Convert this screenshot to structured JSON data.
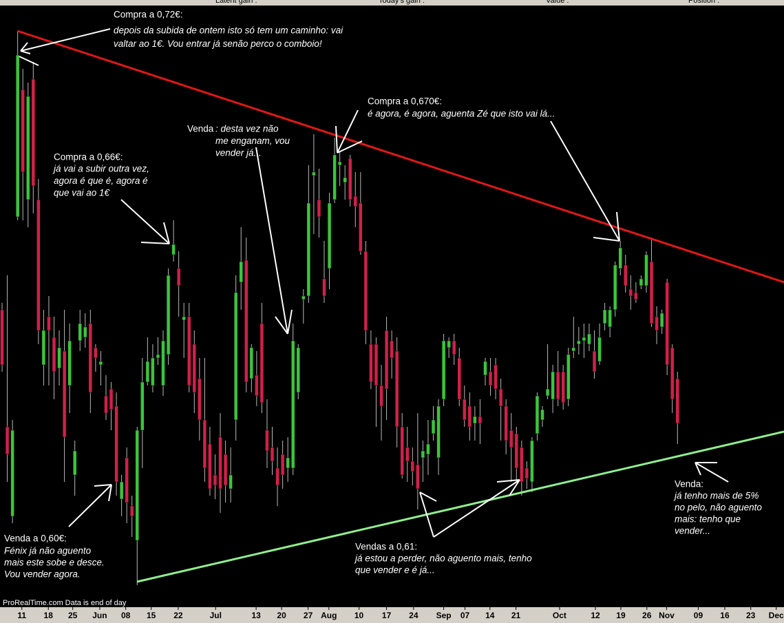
{
  "header": [
    "Latent gain :",
    "Today's gain :",
    "Value :",
    "Position :"
  ],
  "footer": "ProRealTime.com  Data is end of day",
  "chart_data": {
    "type": "candlestick",
    "up_color": "#3cc43c",
    "down_color": "#d0204a",
    "wick_color": "#bbbbbb",
    "xlim": [
      -0.4,
      150.5
    ],
    "ylim": [
      0.564,
      0.74
    ],
    "xticks": [
      {
        "value": 3.8,
        "label": "11"
      },
      {
        "value": 8.9,
        "label": "18"
      },
      {
        "value": 13.6,
        "label": "25"
      },
      {
        "value": 18.8,
        "label": "Jun"
      },
      {
        "value": 23.8,
        "label": "08"
      },
      {
        "value": 28.7,
        "label": "15"
      },
      {
        "value": 33.9,
        "label": "22"
      },
      {
        "value": 41.1,
        "label": "Jul"
      },
      {
        "value": 48.9,
        "label": "13"
      },
      {
        "value": 53.8,
        "label": "20"
      },
      {
        "value": 58.9,
        "label": "27"
      },
      {
        "value": 62.9,
        "label": "Aug"
      },
      {
        "value": 68.7,
        "label": "10"
      },
      {
        "value": 74.0,
        "label": "17"
      },
      {
        "value": 79.2,
        "label": "24"
      },
      {
        "value": 85.0,
        "label": "Sep"
      },
      {
        "value": 89.1,
        "label": "07"
      },
      {
        "value": 93.9,
        "label": "14"
      },
      {
        "value": 98.9,
        "label": "21"
      },
      {
        "value": 107.3,
        "label": "Oct"
      },
      {
        "value": 114.2,
        "label": "12"
      },
      {
        "value": 119.1,
        "label": "19"
      },
      {
        "value": 124.1,
        "label": "26"
      },
      {
        "value": 127.9,
        "label": "Nov"
      },
      {
        "value": 134.0,
        "label": "09"
      },
      {
        "value": 139.1,
        "label": "16"
      },
      {
        "value": 144.1,
        "label": "23"
      },
      {
        "value": 149.0,
        "label": "Dec"
      }
    ],
    "candles": [
      [
        0.65,
        0.652,
        0.632,
        0.634
      ],
      [
        0.616,
        0.66,
        0.6,
        0.608
      ],
      [
        0.59,
        0.618,
        0.588,
        0.615
      ],
      [
        0.677,
        0.731,
        0.676,
        0.724
      ],
      [
        0.714,
        0.72,
        0.676,
        0.69
      ],
      [
        0.682,
        0.716,
        0.674,
        0.712
      ],
      [
        0.717,
        0.722,
        0.678,
        0.686
      ],
      [
        0.682,
        0.688,
        0.64,
        0.644
      ],
      [
        0.634,
        0.65,
        0.628,
        0.644
      ],
      [
        0.648,
        0.654,
        0.628,
        0.644
      ],
      [
        0.642,
        0.648,
        0.624,
        0.632
      ],
      [
        0.633,
        0.644,
        0.628,
        0.639
      ],
      [
        0.638,
        0.65,
        0.6,
        0.613
      ],
      [
        0.628,
        0.646,
        0.62,
        0.641
      ],
      [
        0.602,
        0.612,
        0.596,
        0.609
      ],
      [
        0.641,
        0.65,
        0.638,
        0.646
      ],
      [
        0.642,
        0.649,
        0.639,
        0.645
      ],
      [
        0.646,
        0.65,
        0.62,
        0.626
      ],
      [
        0.639,
        0.64,
        0.632,
        0.636
      ],
      [
        0.634,
        0.638,
        0.628,
        0.635
      ],
      [
        0.625,
        0.631,
        0.618,
        0.62
      ],
      [
        0.627,
        0.629,
        0.615,
        0.621
      ],
      [
        0.622,
        0.626,
        0.596,
        0.6
      ],
      [
        0.595,
        0.602,
        0.59,
        0.6
      ],
      [
        0.607,
        0.61,
        0.588,
        0.594
      ],
      [
        0.593,
        0.596,
        0.584,
        0.59
      ],
      [
        0.583,
        0.616,
        0.57,
        0.615
      ],
      [
        0.615,
        0.636,
        0.604,
        0.629
      ],
      [
        0.629,
        0.642,
        0.628,
        0.635
      ],
      [
        0.628,
        0.64,
        0.626,
        0.636
      ],
      [
        0.636,
        0.642,
        0.634,
        0.637
      ],
      [
        0.628,
        0.644,
        0.625,
        0.641
      ],
      [
        0.637,
        0.662,
        0.634,
        0.66
      ],
      [
        0.666,
        0.676,
        0.664,
        0.669
      ],
      [
        0.662,
        0.667,
        0.648,
        0.657
      ],
      [
        0.647,
        0.652,
        0.636,
        0.648
      ],
      [
        0.648,
        0.652,
        0.626,
        0.628
      ],
      [
        0.64,
        0.644,
        0.62,
        0.626
      ],
      [
        0.63,
        0.636,
        0.612,
        0.618
      ],
      [
        0.618,
        0.636,
        0.6,
        0.604
      ],
      [
        0.611,
        0.616,
        0.596,
        0.598
      ],
      [
        0.602,
        0.608,
        0.595,
        0.599
      ],
      [
        0.613,
        0.62,
        0.591,
        0.598
      ],
      [
        0.608,
        0.612,
        0.594,
        0.599
      ],
      [
        0.598,
        0.61,
        0.594,
        0.602
      ],
      [
        0.618,
        0.66,
        0.612,
        0.655
      ],
      [
        0.658,
        0.674,
        0.65,
        0.664
      ],
      [
        0.6644,
        0.671,
        0.626,
        0.629
      ],
      [
        0.63,
        0.64,
        0.626,
        0.639
      ],
      [
        0.631,
        0.638,
        0.622,
        0.625
      ],
      [
        0.646,
        0.652,
        0.62,
        0.623
      ],
      [
        0.615,
        0.624,
        0.604,
        0.609
      ],
      [
        0.61,
        0.616,
        0.602,
        0.606
      ],
      [
        0.604,
        0.61,
        0.593,
        0.599
      ],
      [
        0.608,
        0.612,
        0.598,
        0.602
      ],
      [
        0.604,
        0.613,
        0.6,
        0.607
      ],
      [
        0.604,
        0.646,
        0.602,
        0.641
      ],
      [
        0.626,
        0.64,
        0.624,
        0.639
      ],
      [
        0.653,
        0.656,
        0.646,
        0.654
      ],
      [
        0.654,
        0.692,
        0.652,
        0.681
      ],
      [
        0.689,
        0.701,
        0.672,
        0.69
      ],
      [
        0.682,
        0.691,
        0.671,
        0.677
      ],
      [
        0.659,
        0.67,
        0.652,
        0.654
      ],
      [
        0.662,
        0.684,
        0.656,
        0.681
      ],
      [
        0.682,
        0.7,
        0.681,
        0.695
      ],
      [
        0.692,
        0.696,
        0.686,
        0.693
      ],
      [
        0.687,
        0.692,
        0.682,
        0.6884
      ],
      [
        0.694,
        0.695,
        0.68,
        0.682
      ],
      [
        0.683,
        0.69,
        0.674,
        0.68
      ],
      [
        0.681,
        0.69,
        0.666,
        0.667
      ],
      [
        0.667,
        0.67,
        0.64,
        0.644
      ],
      [
        0.64,
        0.644,
        0.627,
        0.629
      ],
      [
        0.64,
        0.642,
        0.616,
        0.628
      ],
      [
        0.628,
        0.634,
        0.612,
        0.622
      ],
      [
        0.644,
        0.648,
        0.618,
        0.627
      ],
      [
        0.641,
        0.644,
        0.63,
        0.636
      ],
      [
        0.638,
        0.642,
        0.61,
        0.616
      ],
      [
        0.616,
        0.62,
        0.601,
        0.602
      ],
      [
        0.61,
        0.616,
        0.6,
        0.606
      ],
      [
        0.606,
        0.61,
        0.599,
        0.603
      ],
      [
        0.605,
        0.62,
        0.592,
        0.598
      ],
      [
        0.607,
        0.612,
        0.6,
        0.609
      ],
      [
        0.608,
        0.618,
        0.602,
        0.611
      ],
      [
        0.614,
        0.622,
        0.612,
        0.618
      ],
      [
        0.607,
        0.624,
        0.602,
        0.622
      ],
      [
        0.624,
        0.643,
        0.622,
        0.641
      ],
      [
        0.639,
        0.642,
        0.636,
        0.641
      ],
      [
        0.641,
        0.643,
        0.634,
        0.637
      ],
      [
        0.636,
        0.639,
        0.622,
        0.624
      ],
      [
        0.624,
        0.628,
        0.616,
        0.618
      ],
      [
        0.622,
        0.626,
        0.612,
        0.616
      ],
      [
        0.617,
        0.622,
        0.612,
        0.619
      ],
      [
        0.619,
        0.624,
        0.611,
        0.617
      ],
      [
        0.631,
        0.636,
        0.628,
        0.635
      ],
      [
        0.632,
        0.636,
        0.625,
        0.628
      ],
      [
        0.634,
        0.636,
        0.624,
        0.627
      ],
      [
        0.627,
        0.63,
        0.612,
        0.622
      ],
      [
        0.622,
        0.624,
        0.608,
        0.612
      ],
      [
        0.615,
        0.62,
        0.6,
        0.61
      ],
      [
        0.614,
        0.616,
        0.6,
        0.604
      ],
      [
        0.61,
        0.612,
        0.596,
        0.6
      ],
      [
        0.604,
        0.606,
        0.598,
        0.601
      ],
      [
        0.6,
        0.613,
        0.597,
        0.612
      ],
      [
        0.614,
        0.626,
        0.612,
        0.625
      ],
      [
        0.618,
        0.622,
        0.616,
        0.621
      ],
      [
        0.625,
        0.64,
        0.624,
        0.627
      ],
      [
        0.624,
        0.634,
        0.62,
        0.632
      ],
      [
        0.632,
        0.638,
        0.622,
        0.624
      ],
      [
        0.632,
        0.634,
        0.621,
        0.623
      ],
      [
        0.624,
        0.639,
        0.622,
        0.637
      ],
      [
        0.638,
        0.648,
        0.636,
        0.639
      ],
      [
        0.64,
        0.645,
        0.637,
        0.641
      ],
      [
        0.641,
        0.646,
        0.636,
        0.642
      ],
      [
        0.64,
        0.646,
        0.638,
        0.643
      ],
      [
        0.638,
        0.644,
        0.63,
        0.632
      ],
      [
        0.635,
        0.646,
        0.634,
        0.642
      ],
      [
        0.646,
        0.652,
        0.644,
        0.65
      ],
      [
        0.645,
        0.651,
        0.642,
        0.65
      ],
      [
        0.65,
        0.664,
        0.648,
        0.663
      ],
      [
        0.662,
        0.67,
        0.66,
        0.668
      ],
      [
        0.663,
        0.666,
        0.655,
        0.657
      ],
      [
        0.656,
        0.66,
        0.65,
        0.654
      ],
      [
        0.655,
        0.658,
        0.652,
        0.653
      ],
      [
        0.657,
        0.66,
        0.656,
        0.659
      ],
      [
        0.657,
        0.667,
        0.655,
        0.666
      ],
      [
        0.664,
        0.671,
        0.645,
        0.646
      ],
      [
        0.648,
        0.651,
        0.64,
        0.644
      ],
      [
        0.645,
        0.65,
        0.643,
        0.649
      ],
      [
        0.658,
        0.659,
        0.631,
        0.634
      ],
      [
        0.639,
        0.64,
        0.62,
        0.624
      ],
      [
        0.63,
        0.632,
        0.611,
        0.617
      ]
    ],
    "trendlines": [
      {
        "color": "#e01818",
        "points": [
          [
            3,
            0.731
          ],
          [
            150.5,
            0.658
          ]
        ]
      },
      {
        "color": "#90ee90",
        "points": [
          [
            26,
            0.571
          ],
          [
            150.5,
            0.6146
          ]
        ]
      }
    ],
    "annotations": [
      {
        "title": "Compra a 0,72€:",
        "lines": [
          "depois da subida de ontem isto só tem um caminho: vai",
          "valtar ao 1€. Vou entrar já senão perco o comboio!"
        ]
      },
      {
        "title": "Compra a 0,66€:",
        "lines": [
          "já vai a subir outra vez,",
          "agora é que é, agora é",
          "que vai ao 1€"
        ]
      },
      {
        "title": "Venda",
        "lines": [
          ": desta vez não",
          "me enganam, vou",
          "vender já..."
        ]
      },
      {
        "title": "Compra a 0,670€:",
        "lines": [
          "é agora, é agora, aguenta Zé que isto vai lá..."
        ]
      },
      {
        "title": "Venda a 0,60€:",
        "lines": [
          "Fénix já não aguento",
          "mais este sobe e desce.",
          "Vou vender agora."
        ]
      },
      {
        "title": "Vendas a 0,61:",
        "lines": [
          "já estou a perder, não aguento mais, tenho",
          "que vender e é já..."
        ]
      },
      {
        "title": "Venda:",
        "lines": [
          "já tenho mais de 5%",
          "no pelo, não aguento",
          "mais: tenho que",
          "vender..."
        ]
      }
    ]
  }
}
